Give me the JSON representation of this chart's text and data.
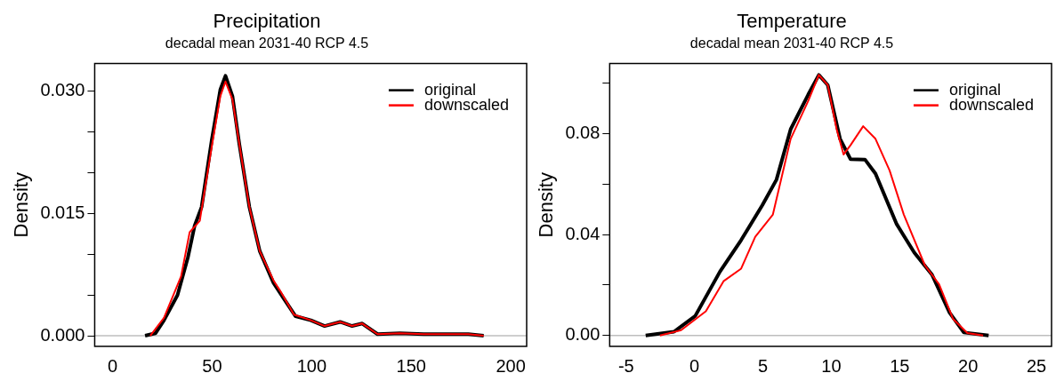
{
  "chart_data": [
    {
      "type": "line",
      "title": "Precipitation",
      "subtitle": "decadal mean 2031-40 RCP 4.5",
      "ylabel": "Density",
      "xlim": [
        -9,
        208
      ],
      "xticks": [
        0,
        50,
        100,
        150,
        200
      ],
      "ylim": [
        -0.0013,
        0.0334
      ],
      "yticks": [
        {
          "value": 0,
          "label": "0.000"
        },
        {
          "value": 0.005,
          "label": null
        },
        {
          "value": 0.01,
          "label": null
        },
        {
          "value": 0.015,
          "label": "0.015"
        },
        {
          "value": 0.02,
          "label": null
        },
        {
          "value": 0.025,
          "label": null
        },
        {
          "value": 0.03,
          "label": "0.030"
        }
      ],
      "legend": "top right",
      "grid": false,
      "marker": "none",
      "line_style": "solid",
      "ref_lines": [
        {
          "axis": "y",
          "value": 0,
          "color": "#bebebe"
        }
      ],
      "series": [
        {
          "name": "original",
          "color": "#000000",
          "x": [
            16.3,
            21.5,
            25.8,
            32.6,
            37.8,
            41.2,
            44.7,
            49.8,
            54.1,
            56.7,
            60.2,
            63.6,
            68.7,
            73.9,
            80.8,
            85.9,
            91.9,
            99.6,
            106.5,
            114.3,
            120.3,
            125.4,
            133.1,
            144.3,
            156.3,
            178.7,
            186.4
          ],
          "values": [
            0,
            0.0003,
            0.0019,
            0.005,
            0.0096,
            0.0135,
            0.0158,
            0.024,
            0.0302,
            0.0319,
            0.0294,
            0.0236,
            0.0158,
            0.0104,
            0.0065,
            0.0046,
            0.0024,
            0.0019,
            0.0012,
            0.0017,
            0.0012,
            0.0015,
            0.0002,
            0.0003,
            0.0002,
            0.0002,
            0
          ]
        },
        {
          "name": "downscaled",
          "color": "#ff0000",
          "x": [
            18.9,
            25.8,
            34.4,
            38.7,
            43.8,
            49.8,
            54.1,
            56.7,
            60.2,
            63.6,
            68.7,
            73.9,
            80.8,
            84.2,
            91.1,
            99.6,
            106.5,
            114.3,
            120.3,
            125.4,
            133.1,
            144.3,
            156.3,
            178.7,
            186.4
          ],
          "values": [
            0,
            0.0022,
            0.0073,
            0.0127,
            0.0141,
            0.0232,
            0.0294,
            0.0312,
            0.029,
            0.0236,
            0.0158,
            0.0104,
            0.0068,
            0.0055,
            0.0026,
            0.0019,
            0.0012,
            0.0017,
            0.0012,
            0.0015,
            0.0002,
            0.0003,
            0.0002,
            0.0002,
            0
          ]
        }
      ]
    },
    {
      "type": "line",
      "title": "Temperature",
      "subtitle": "decadal mean 2031-40 RCP 4.5",
      "ylabel": "Density",
      "xlim": [
        -6.2,
        26.1
      ],
      "xticks": [
        -5,
        0,
        5,
        10,
        15,
        20,
        25
      ],
      "ylim": [
        -0.0043,
        0.1077
      ],
      "yticks": [
        {
          "value": 0,
          "label": "0.00"
        },
        {
          "value": 0.02,
          "label": null
        },
        {
          "value": 0.04,
          "label": "0.04"
        },
        {
          "value": 0.06,
          "label": null
        },
        {
          "value": 0.08,
          "label": "0.08"
        },
        {
          "value": 0.1,
          "label": null
        }
      ],
      "legend": "top right",
      "grid": false,
      "marker": "none",
      "line_style": "solid",
      "ref_lines": [
        {
          "axis": "y",
          "value": 0,
          "color": "#bebebe"
        }
      ],
      "series": [
        {
          "name": "original",
          "color": "#000000",
          "x": [
            -3.57,
            -1.5,
            0.05,
            1.86,
            3.41,
            4.96,
            5.99,
            7.03,
            8.32,
            9.09,
            9.74,
            10.64,
            11.41,
            12.46,
            13.23,
            14.78,
            16.07,
            17.36,
            18.65,
            19.69,
            21.5
          ],
          "values": [
            0,
            0.0015,
            0.0077,
            0.0253,
            0.0378,
            0.0516,
            0.0617,
            0.0817,
            0.0955,
            0.1032,
            0.0992,
            0.0779,
            0.0698,
            0.0697,
            0.0641,
            0.0441,
            0.0328,
            0.0241,
            0.009,
            0.0012,
            0
          ]
        },
        {
          "name": "downscaled",
          "color": "#ff0000",
          "x": [
            -2.53,
            -0.98,
            0.83,
            2.12,
            3.41,
            4.44,
            5.73,
            7.03,
            8.32,
            9.09,
            9.74,
            10.39,
            10.9,
            11.41,
            12.33,
            13.23,
            14.26,
            15.3,
            16.84,
            17.88,
            18.91,
            19.95,
            21.1
          ],
          "values": [
            0,
            0.0021,
            0.0096,
            0.0215,
            0.0265,
            0.0391,
            0.0479,
            0.0779,
            0.093,
            0.1032,
            0.0992,
            0.0817,
            0.0717,
            0.0754,
            0.0829,
            0.0779,
            0.0654,
            0.0479,
            0.0278,
            0.0203,
            0.0065,
            0.001,
            0
          ]
        }
      ]
    }
  ]
}
